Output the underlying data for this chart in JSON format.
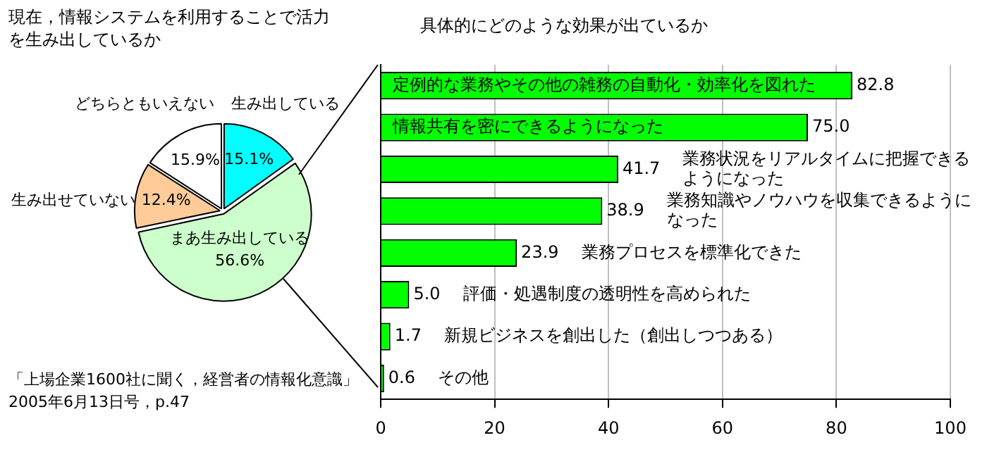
{
  "chart_data": [
    {
      "type": "pie",
      "title": "現在，情報システムを利用することで活力を生み出しているか",
      "categories": [
        "生み出している",
        "まあ生み出している",
        "生み出せていない",
        "どちらともいえない"
      ],
      "values": [
        15.1,
        56.6,
        12.4,
        15.9
      ],
      "colors": [
        "#00ffff",
        "#ccffcc",
        "#ffcc99",
        "#ffffff"
      ],
      "value_labels": [
        "15.1%",
        "56.6%",
        "12.4%",
        "15.9%"
      ],
      "legend": false,
      "annotations": [
        "「上場企業1600社に聞く，経営者の情報化意識」",
        "2005年6月13日号，p.47"
      ]
    },
    {
      "type": "bar",
      "orientation": "horizontal",
      "title": "具体的にどのような効果が出ているか",
      "categories": [
        "定例的な業務やその他の雑務の自動化・効率化を図れた",
        "情報共有を密にできるようになった",
        "業務状況をリアルタイムに把握できるようになった",
        "業務知識やノウハウを収集できるようになった",
        "業務プロセスを標準化できた",
        "評価・処遇制度の透明性を高められた",
        "新規ビジネスを創出した（創出しつつある）",
        "その他"
      ],
      "values": [
        82.8,
        75.0,
        41.7,
        38.9,
        23.9,
        5.0,
        1.7,
        0.6
      ],
      "value_labels": [
        "82.8",
        "75.0",
        "41.7",
        "38.9",
        "23.9",
        "5.0",
        "1.7",
        "0.6"
      ],
      "color": "#00ff00",
      "xlim": [
        0,
        100
      ],
      "xticks": [
        0,
        20,
        40,
        60,
        80,
        100
      ],
      "grid": "x",
      "tick_labels": "x",
      "legend": false
    }
  ]
}
